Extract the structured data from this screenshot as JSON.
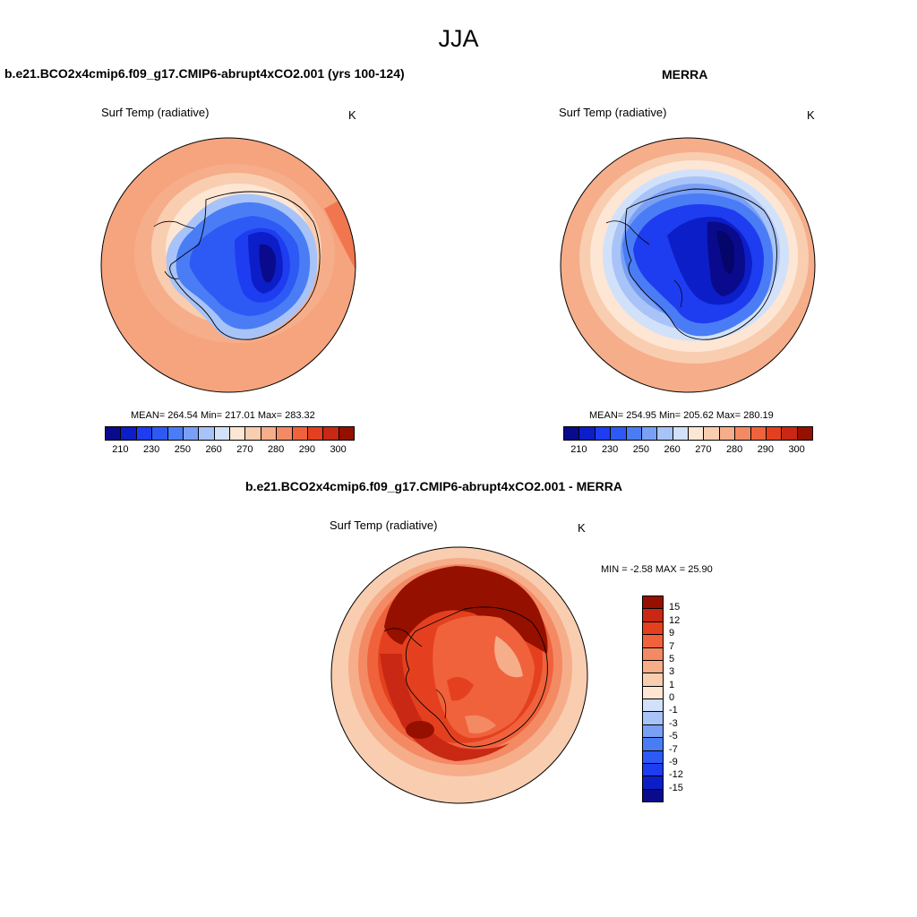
{
  "page": {
    "title": "JJA"
  },
  "panels": {
    "model": {
      "title": "b.e21.BCO2x4cmip6.f09_g17.CMIP6-abrupt4xCO2.001 (yrs 100-124)",
      "variable": "Surf Temp (radiative)",
      "units": "K",
      "stats": "MEAN= 264.54  Min= 217.01  Max= 283.32"
    },
    "obs": {
      "title": "MERRA",
      "variable": "Surf Temp (radiative)",
      "units": "K",
      "stats": "MEAN= 254.95  Min= 205.62  Max= 280.19"
    },
    "diff": {
      "title": "b.e21.BCO2x4cmip6.f09_g17.CMIP6-abrupt4xCO2.001 - MERRA",
      "variable": "Surf Temp (radiative)",
      "units": "K",
      "stats": "MIN =  -2.58 MAX =  25.90"
    }
  },
  "colorbars": {
    "abs": {
      "labels": [
        "210",
        "230",
        "250",
        "260",
        "270",
        "280",
        "290",
        "300"
      ],
      "colors": [
        "#0a0a8c",
        "#0c1ec8",
        "#1e3cf0",
        "#2d5af5",
        "#4a7df5",
        "#7aa0f5",
        "#a8c3f7",
        "#d2e1fa",
        "#fde6d4",
        "#f9cdb0",
        "#f6ad8a",
        "#f38a64",
        "#f0623c",
        "#e4401f",
        "#c82814",
        "#961000"
      ]
    },
    "diff": {
      "labels": [
        "15",
        "12",
        "9",
        "7",
        "5",
        "3",
        "1",
        "0",
        "-1",
        "-3",
        "-5",
        "-7",
        "-9",
        "-12",
        "-15"
      ],
      "colors": [
        "#961000",
        "#c82814",
        "#e4401f",
        "#f0623c",
        "#f38a64",
        "#f6ad8a",
        "#f9cdb0",
        "#fde6d4",
        "#d2e1fa",
        "#a8c3f7",
        "#7aa0f5",
        "#4a7df5",
        "#2d5af5",
        "#1e3cf0",
        "#0c1ec8",
        "#0a0a8c"
      ]
    }
  }
}
